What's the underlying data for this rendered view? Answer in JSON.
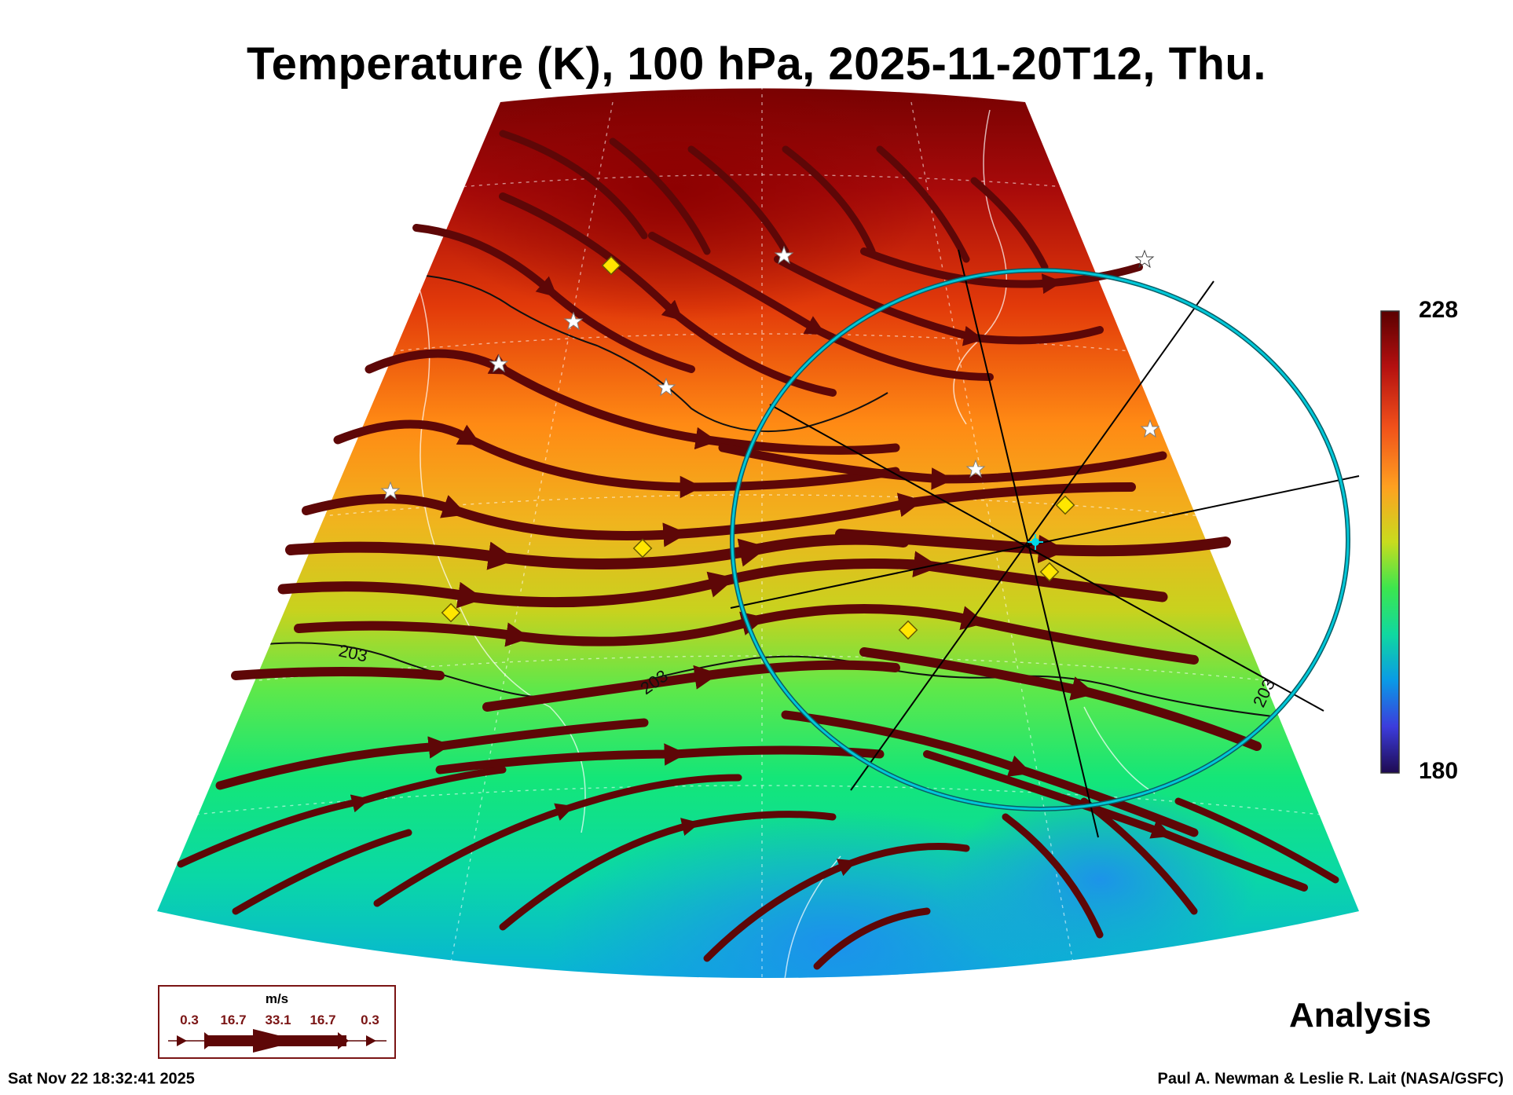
{
  "title": "Temperature (K), 100 hPa, 2025-11-20T12, Thu.",
  "colorbar": {
    "max_label": "228",
    "min_label": "180",
    "max": 228,
    "min": 180
  },
  "contour_labels": [
    "203",
    "203",
    "203"
  ],
  "wind_legend": {
    "unit": "m/s",
    "values": [
      "0.3",
      "16.7",
      "33.1",
      "16.7",
      "0.3"
    ]
  },
  "analysis_label": "Analysis",
  "footer": {
    "timestamp": "Sat Nov 22 18:32:41 2025",
    "credit": "Paul A. Newman & Leslie R. Lait (NASA/GSFC)"
  },
  "colors": {
    "wind_arrow": "#5e0707",
    "ring": "#00b8c8",
    "marker": "#ffe600"
  }
}
